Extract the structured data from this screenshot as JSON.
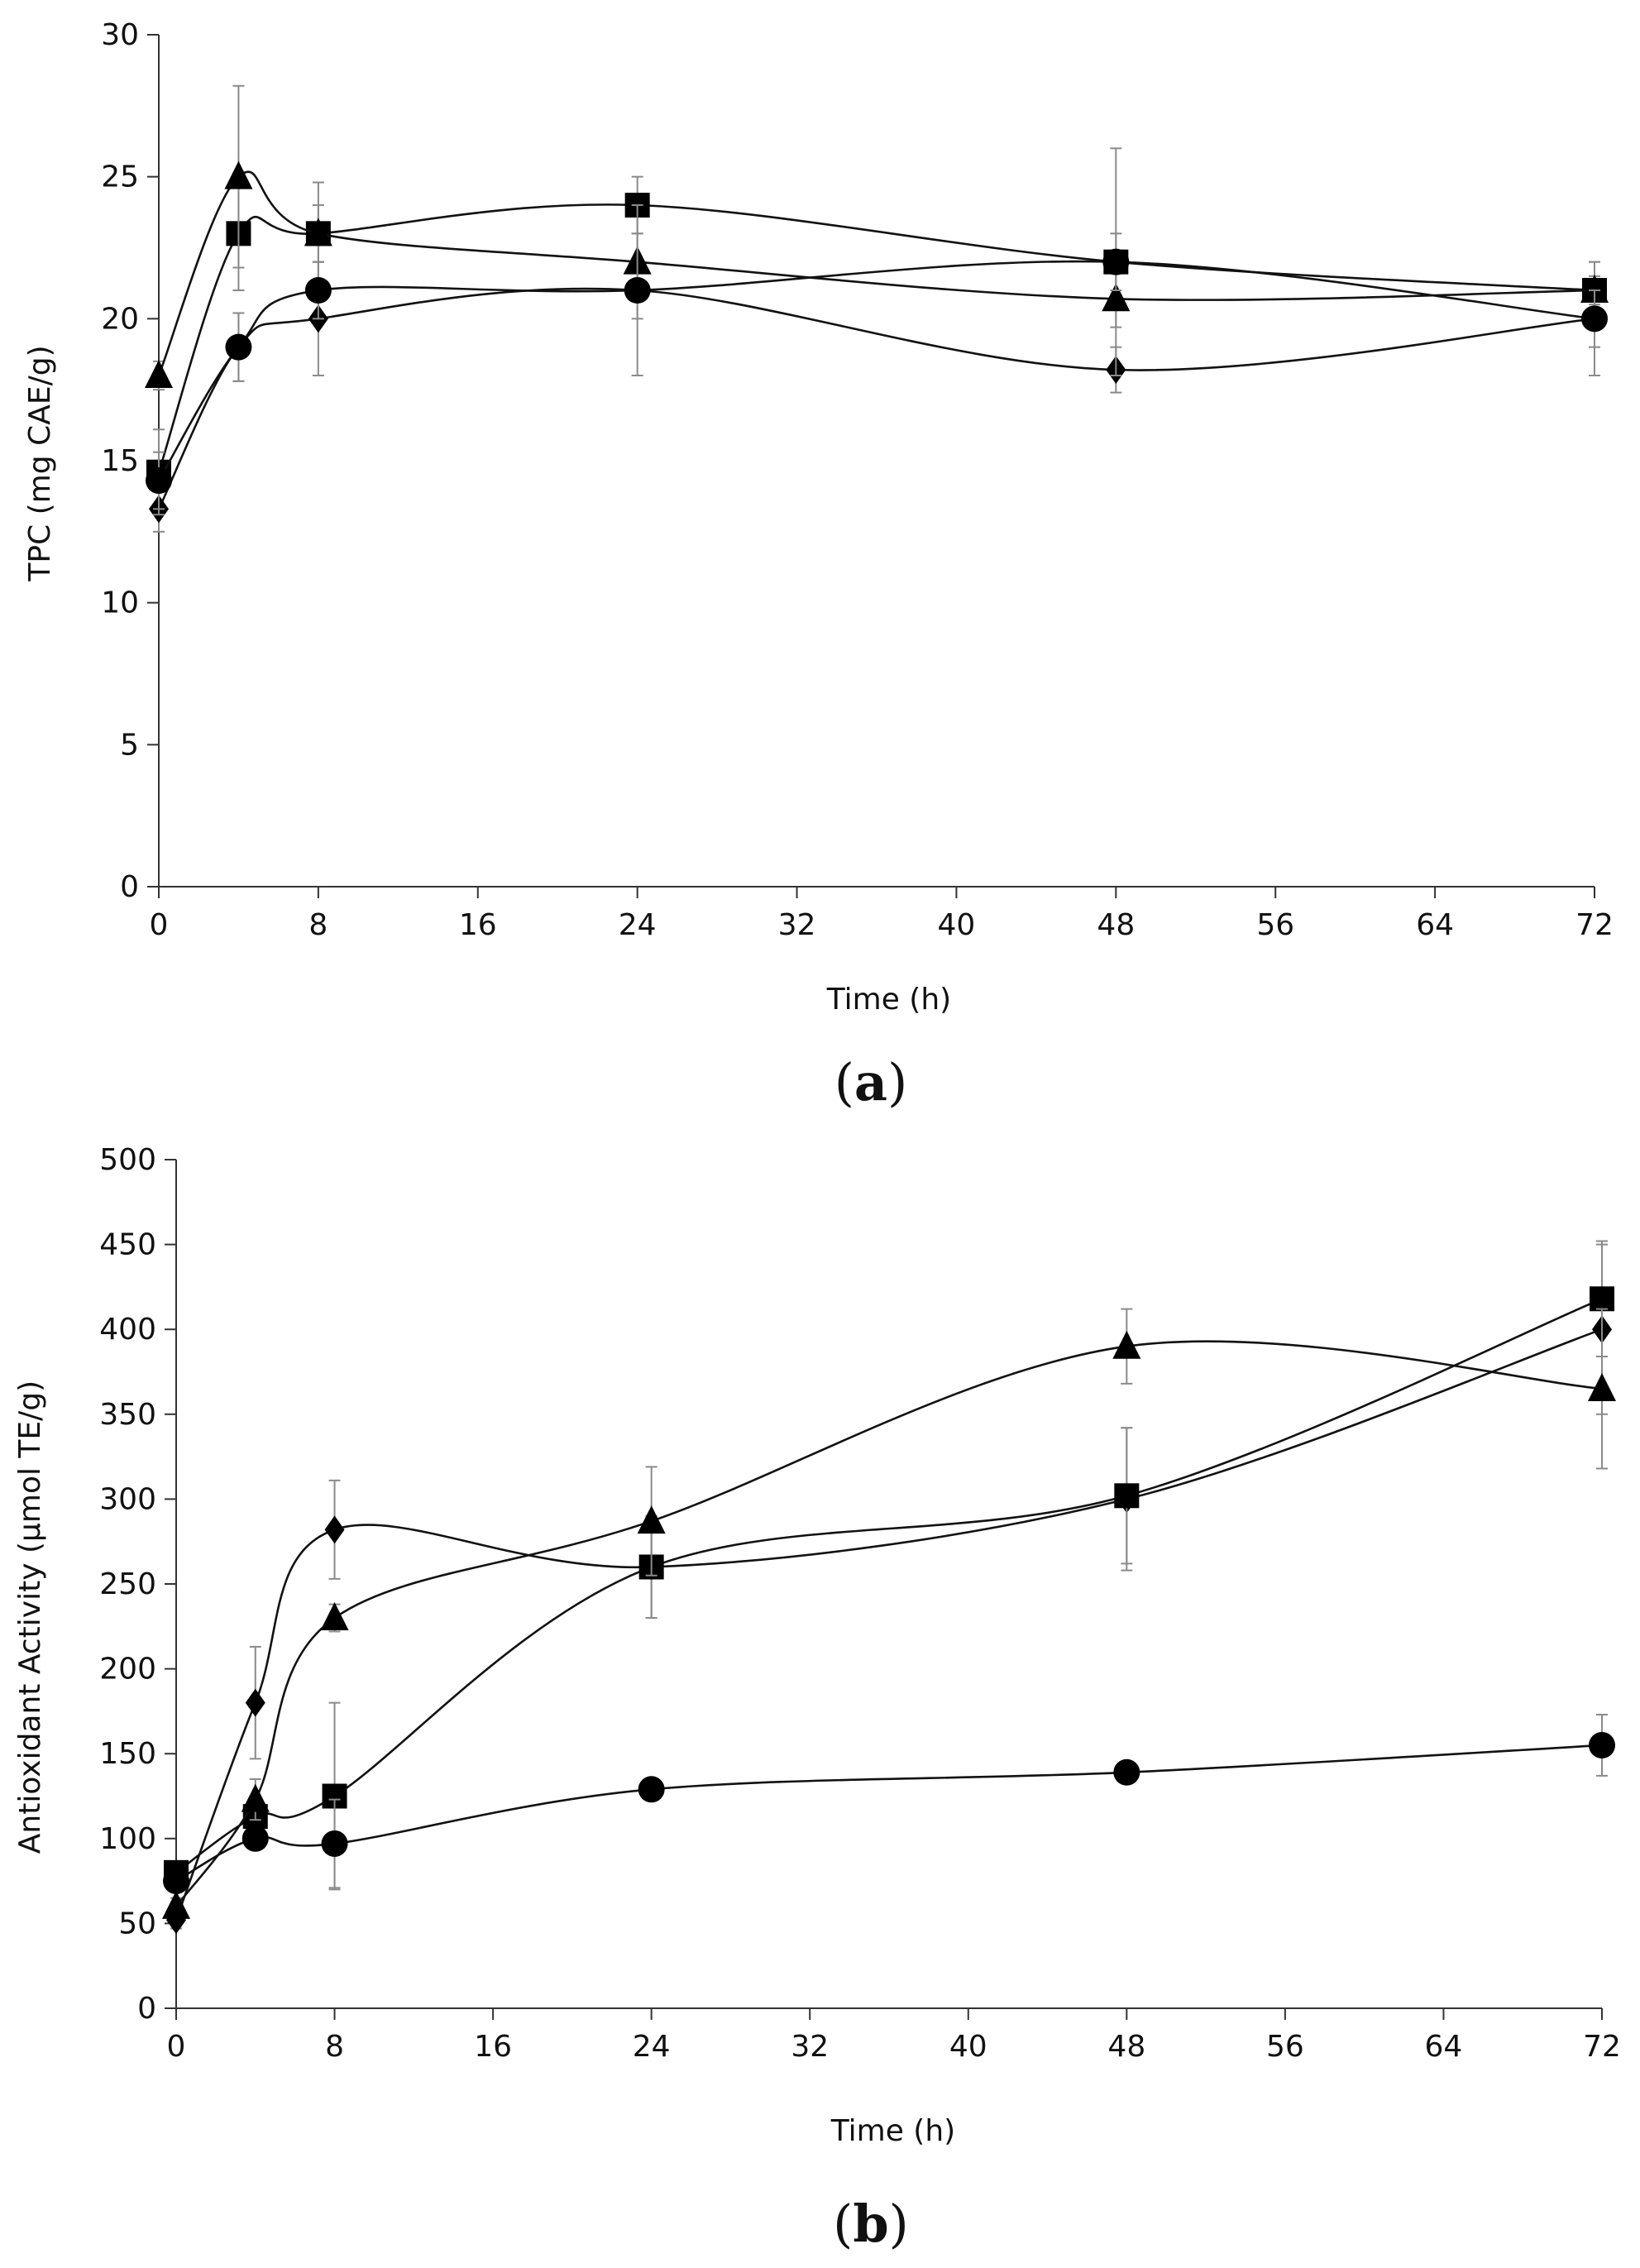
{
  "chart_data": [
    {
      "type": "line",
      "panel_label": "(a)",
      "panel_letter": "a",
      "xlabel": "Time (h)",
      "ylabel": "TPC (mg CAE/g)",
      "xlim": [
        0,
        72
      ],
      "ylim": [
        0,
        30
      ],
      "xticks": [
        0,
        8,
        16,
        24,
        32,
        40,
        48,
        56,
        64,
        72
      ],
      "yticks": [
        0,
        5,
        10,
        15,
        20,
        25,
        30
      ],
      "x": [
        0,
        4,
        8,
        24,
        48,
        72
      ],
      "series": [
        {
          "name": "diamond",
          "marker": "diamond",
          "values": [
            13.3,
            19.0,
            20.0,
            21.0,
            18.2,
            20.0
          ],
          "errors": [
            0.8,
            1.2,
            2.0,
            1.0,
            0.8,
            2.0
          ]
        },
        {
          "name": "square",
          "marker": "square",
          "values": [
            14.6,
            23.0,
            23.0,
            24.0,
            22.0,
            21.0
          ],
          "errors": [
            1.5,
            2.0,
            1.8,
            1.0,
            4.0,
            1.0
          ]
        },
        {
          "name": "triangle",
          "marker": "triangle",
          "values": [
            18.0,
            25.0,
            23.0,
            22.0,
            20.7,
            21.0
          ],
          "errors": [
            0.5,
            3.2,
            1.0,
            1.0,
            1.0,
            0.5
          ]
        },
        {
          "name": "circle",
          "marker": "circle",
          "values": [
            14.3,
            19.0,
            21.0,
            21.0,
            22.0,
            20.0
          ],
          "errors": [
            1.0,
            1.2,
            1.0,
            3.0,
            1.0,
            1.0
          ]
        }
      ]
    },
    {
      "type": "line",
      "panel_label": "(b)",
      "panel_letter": "b",
      "xlabel": "Time (h)",
      "ylabel": "Antioxidant Activity (µmol TE/g)",
      "xlim": [
        0,
        72
      ],
      "ylim": [
        0,
        500
      ],
      "xticks": [
        0,
        8,
        16,
        24,
        32,
        40,
        48,
        56,
        64,
        72
      ],
      "yticks": [
        0,
        50,
        100,
        150,
        200,
        250,
        300,
        350,
        400,
        450,
        500
      ],
      "x": [
        0,
        4,
        8,
        24,
        48,
        72
      ],
      "series": [
        {
          "name": "diamond",
          "marker": "diamond",
          "values": [
            52,
            180,
            282,
            260,
            300,
            400
          ],
          "errors": [
            5,
            33,
            29,
            30,
            42,
            50
          ]
        },
        {
          "name": "square",
          "marker": "square",
          "values": [
            80,
            113,
            125,
            260,
            302,
            418
          ],
          "errors": [
            5,
            10,
            55,
            30,
            40,
            34
          ]
        },
        {
          "name": "triangle",
          "marker": "triangle",
          "values": [
            60,
            123,
            230,
            287,
            390,
            365
          ],
          "errors": [
            5,
            12,
            8,
            32,
            22,
            47
          ]
        },
        {
          "name": "circle",
          "marker": "circle",
          "values": [
            75,
            100,
            97,
            129,
            139,
            155
          ],
          "errors": [
            5,
            5,
            26,
            5,
            5,
            18
          ]
        }
      ]
    }
  ]
}
